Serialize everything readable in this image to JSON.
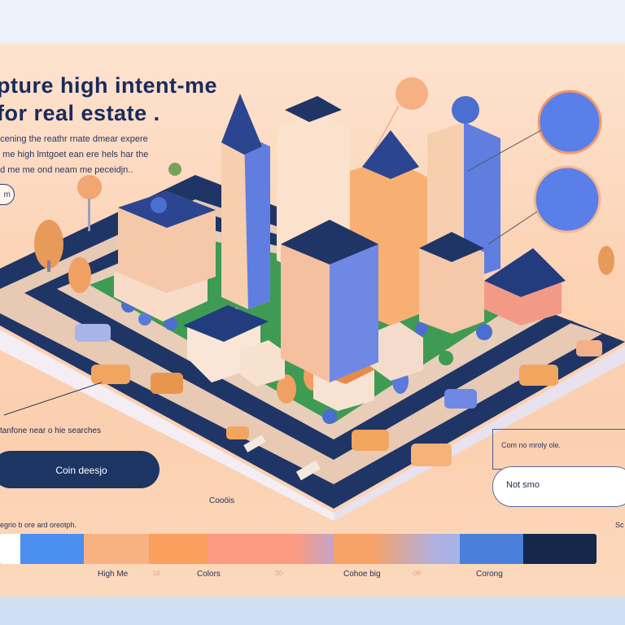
{
  "hero": {
    "title_line1": "pture high intent-me",
    "title_line2": "for real estate .",
    "subtitle_lines": [
      "ocening the reathr rnate dmear expere",
      "o me high lmtgoet ean ere hels har the",
      "ad me me ond neam me peceidjn.."
    ],
    "pill_label": "m"
  },
  "left_panel": {
    "search_note": "tanfone near o hie searches",
    "cta_label": "Coin deesjo",
    "colors_caption": "Cooöis",
    "palette_caption": "egrio b ore ard oreotph."
  },
  "right_panel": {
    "info_text": "Com no mroly ole.",
    "input_value": "Not smo",
    "caption": "Sc"
  },
  "palette": {
    "swatches": [
      "#ffffff",
      "#4b8ff0",
      "#f8b282",
      "#f9a05e",
      "#fb9a80",
      "#f7a266",
      "#4a7fdb",
      "#15284c"
    ],
    "labels": [
      "High Me",
      "Colors",
      "Cohoe big",
      "Corong"
    ],
    "ticks": [
      "·18·",
      "30·",
      "·08·"
    ]
  },
  "colors": {
    "navy": "#1c3563",
    "blue": "#4b7fdc",
    "orange": "#f9a05e",
    "grass": "#3e9a52",
    "peach": "#fcd2b4"
  }
}
